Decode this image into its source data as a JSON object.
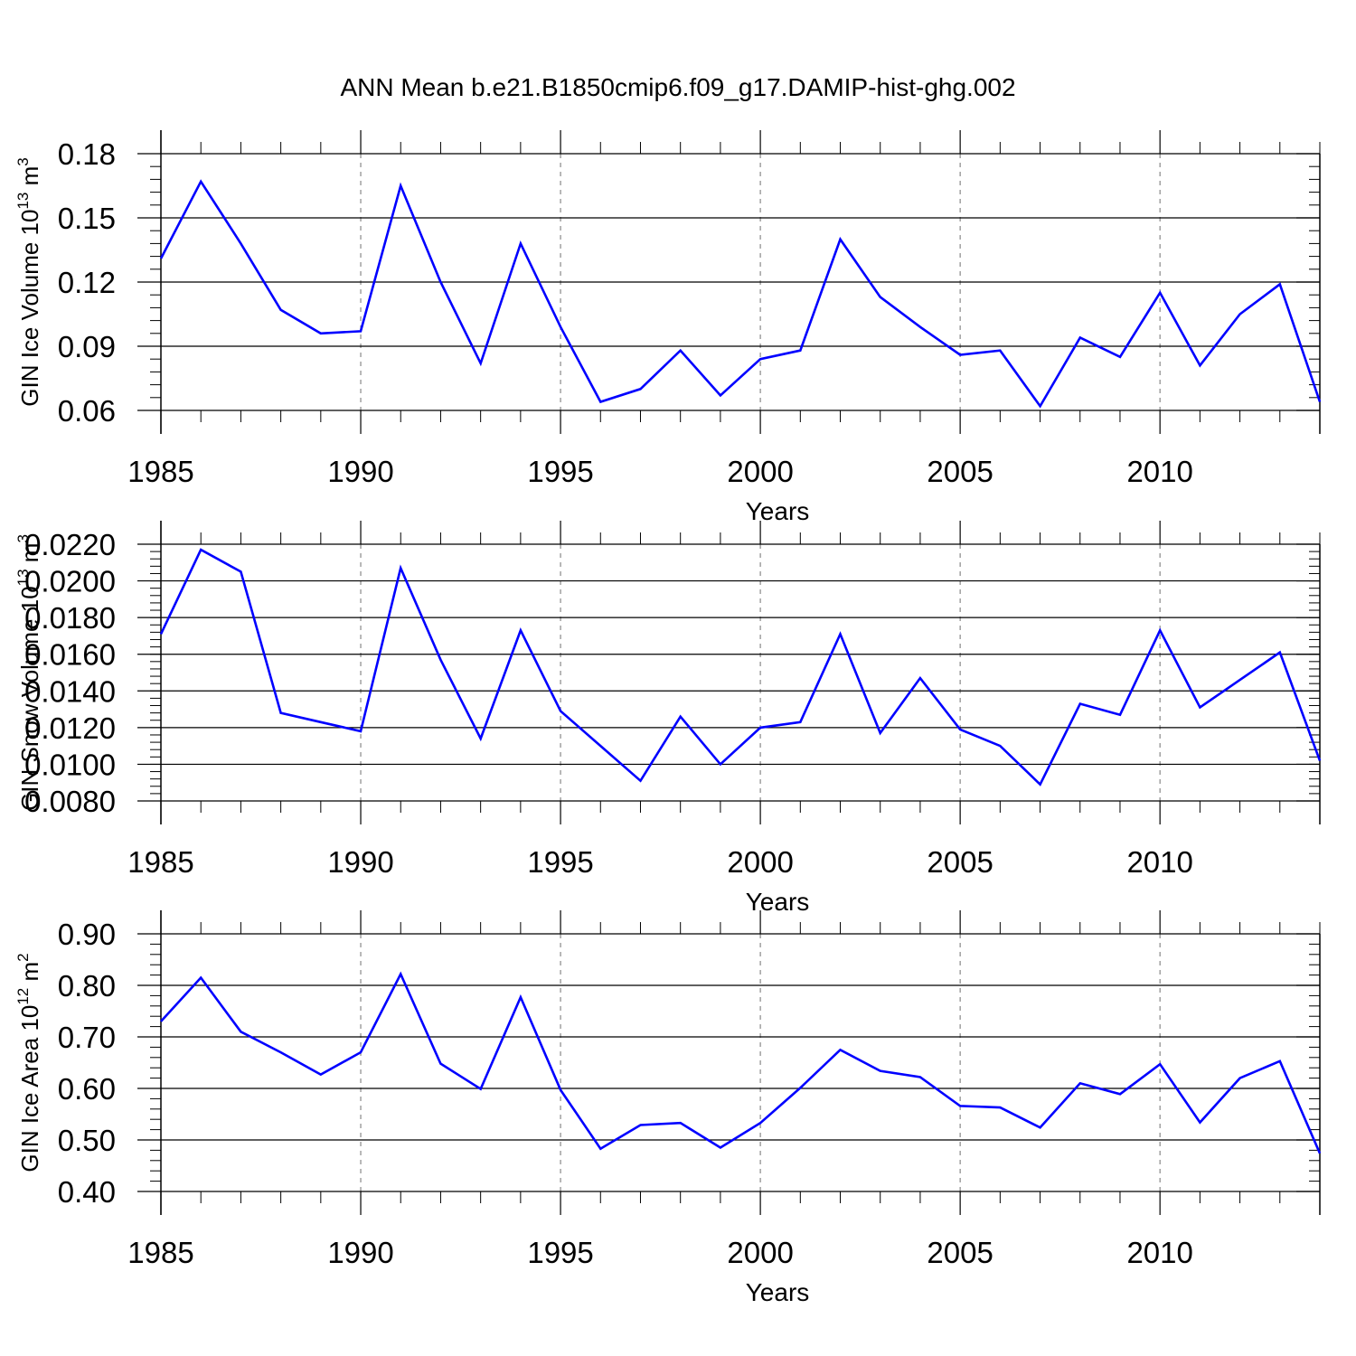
{
  "figure_title": "ANN Mean b.e21.B1850cmip6.f09_g17.DAMIP-hist-ghg.002",
  "colors": {
    "series": "#0000ff",
    "axis": "#000000",
    "gridline": "#888888"
  },
  "chart_data": [
    {
      "type": "line",
      "title": "ANN Mean b.e21.B1850cmip6.f09_g17.DAMIP-hist-ghg.002",
      "xlabel": "Years",
      "ylabel": {
        "base": "GIN Ice Volume 10",
        "exp1": "13",
        "unit": " m",
        "exp2": "3"
      },
      "xlim": [
        1985,
        2014
      ],
      "ylim": [
        0.06,
        0.18
      ],
      "y_ticks": [
        0.06,
        0.09,
        0.12,
        0.15,
        0.18
      ],
      "y_tick_labels": [
        "0.06",
        "0.09",
        "0.12",
        "0.15",
        "0.18"
      ],
      "y_minor_step": 0.006,
      "x_ticks": [
        1985,
        1990,
        1995,
        2000,
        2005,
        2010
      ],
      "x_tick_labels": [
        "1985",
        "1990",
        "1995",
        "2000",
        "2005",
        "2010"
      ],
      "grid": "dashed vertical at major x ticks",
      "x": [
        1985,
        1986,
        1987,
        1988,
        1989,
        1990,
        1991,
        1992,
        1993,
        1994,
        1995,
        1996,
        1997,
        1998,
        1999,
        2000,
        2001,
        2002,
        2003,
        2004,
        2005,
        2006,
        2007,
        2008,
        2009,
        2010,
        2011,
        2012,
        2013,
        2014
      ],
      "series": [
        {
          "name": "GIN Ice Volume",
          "values": [
            0.131,
            0.167,
            0.138,
            0.107,
            0.096,
            0.097,
            0.165,
            0.12,
            0.082,
            0.138,
            0.099,
            0.064,
            0.07,
            0.088,
            0.067,
            0.084,
            0.088,
            0.14,
            0.113,
            0.099,
            0.086,
            0.088,
            0.062,
            0.094,
            0.085,
            0.115,
            0.081,
            0.105,
            0.119,
            0.064
          ]
        }
      ]
    },
    {
      "type": "line",
      "title": "",
      "xlabel": "Years",
      "ylabel": {
        "base": "GIN Snow Volume 10",
        "exp1": "13",
        "unit": " m",
        "exp2": "3"
      },
      "xlim": [
        1985,
        2014
      ],
      "ylim": [
        0.008,
        0.022
      ],
      "y_ticks": [
        0.008,
        0.01,
        0.012,
        0.014,
        0.016,
        0.018,
        0.02,
        0.022
      ],
      "y_tick_labels": [
        "0.0080",
        "0.0100",
        "0.0120",
        "0.0140",
        "0.0160",
        "0.0180",
        "0.0200",
        "0.0220"
      ],
      "y_minor_step": 0.0004,
      "x_ticks": [
        1985,
        1990,
        1995,
        2000,
        2005,
        2010
      ],
      "x_tick_labels": [
        "1985",
        "1990",
        "1995",
        "2000",
        "2005",
        "2010"
      ],
      "grid": "dashed vertical at major x ticks",
      "x": [
        1985,
        1986,
        1987,
        1988,
        1989,
        1990,
        1991,
        1992,
        1993,
        1994,
        1995,
        1996,
        1997,
        1998,
        1999,
        2000,
        2001,
        2002,
        2003,
        2004,
        2005,
        2006,
        2007,
        2008,
        2009,
        2010,
        2011,
        2012,
        2013,
        2014
      ],
      "series": [
        {
          "name": "GIN Snow Volume",
          "values": [
            0.0171,
            0.0217,
            0.0205,
            0.0128,
            0.0123,
            0.0118,
            0.0207,
            0.0157,
            0.0114,
            0.0173,
            0.0129,
            0.011,
            0.0091,
            0.0126,
            0.01,
            0.012,
            0.0123,
            0.0171,
            0.0117,
            0.0147,
            0.0119,
            0.011,
            0.0089,
            0.0133,
            0.0127,
            0.0173,
            0.0131,
            0.0146,
            0.0161,
            0.0102
          ]
        }
      ]
    },
    {
      "type": "line",
      "title": "",
      "xlabel": "Years",
      "ylabel": {
        "base": "GIN Ice Area 10",
        "exp1": "12",
        "unit": " m",
        "exp2": "2"
      },
      "xlim": [
        1985,
        2014
      ],
      "ylim": [
        0.4,
        0.9
      ],
      "y_ticks": [
        0.4,
        0.5,
        0.6,
        0.7,
        0.8,
        0.9
      ],
      "y_tick_labels": [
        "0.40",
        "0.50",
        "0.60",
        "0.70",
        "0.80",
        "0.90"
      ],
      "y_minor_step": 0.02,
      "x_ticks": [
        1985,
        1990,
        1995,
        2000,
        2005,
        2010
      ],
      "x_tick_labels": [
        "1985",
        "1990",
        "1995",
        "2000",
        "2005",
        "2010"
      ],
      "grid": "dashed vertical at major x ticks",
      "x": [
        1985,
        1986,
        1987,
        1988,
        1989,
        1990,
        1991,
        1992,
        1993,
        1994,
        1995,
        1996,
        1997,
        1998,
        1999,
        2000,
        2001,
        2002,
        2003,
        2004,
        2005,
        2006,
        2007,
        2008,
        2009,
        2010,
        2011,
        2012,
        2013,
        2014
      ],
      "series": [
        {
          "name": "GIN Ice Area",
          "values": [
            0.73,
            0.815,
            0.71,
            0.67,
            0.627,
            0.67,
            0.822,
            0.648,
            0.599,
            0.777,
            0.597,
            0.483,
            0.529,
            0.533,
            0.485,
            0.533,
            0.601,
            0.675,
            0.634,
            0.622,
            0.566,
            0.563,
            0.524,
            0.61,
            0.589,
            0.647,
            0.534,
            0.62,
            0.653,
            0.474
          ]
        }
      ]
    }
  ]
}
